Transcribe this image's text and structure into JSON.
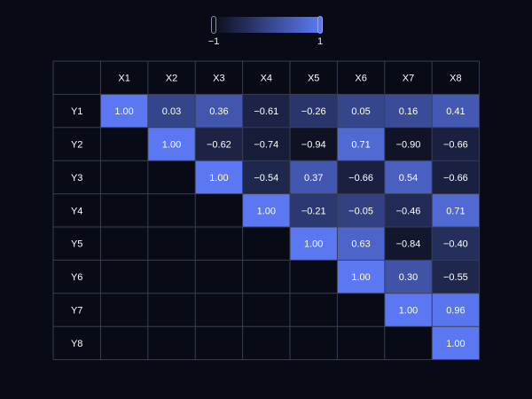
{
  "legend": {
    "min_label": "−1",
    "max_label": "1",
    "color_low": "#0d0f1c",
    "color_high": "#5b78f2"
  },
  "chart_data": {
    "type": "heatmap",
    "title": "",
    "xlabel": "",
    "ylabel": "",
    "x_categories": [
      "X1",
      "X2",
      "X3",
      "X4",
      "X5",
      "X6",
      "X7",
      "X8"
    ],
    "y_categories": [
      "Y1",
      "Y2",
      "Y3",
      "Y4",
      "Y5",
      "Y6",
      "Y7",
      "Y8"
    ],
    "value_range": [
      -1,
      1
    ],
    "grid": true,
    "legend_position": "top-center",
    "values": [
      [
        "1.00",
        "0.03",
        "0.36",
        "−0.61",
        "−0.26",
        "0.05",
        "0.16",
        "0.41"
      ],
      [
        null,
        "1.00",
        "−0.62",
        "−0.74",
        "−0.94",
        "0.71",
        "−0.90",
        "−0.66"
      ],
      [
        null,
        null,
        "1.00",
        "−0.54",
        "0.37",
        "−0.66",
        "0.54",
        "−0.66"
      ],
      [
        null,
        null,
        null,
        "1.00",
        "−0.21",
        "−0.05",
        "−0.46",
        "0.71"
      ],
      [
        null,
        null,
        null,
        null,
        "1.00",
        "0.63",
        "−0.84",
        "−0.40"
      ],
      [
        null,
        null,
        null,
        null,
        null,
        "1.00",
        "0.30",
        "−0.55"
      ],
      [
        null,
        null,
        null,
        null,
        null,
        null,
        "1.00",
        "0.96"
      ],
      [
        null,
        null,
        null,
        null,
        null,
        null,
        null,
        "1.00"
      ]
    ]
  }
}
